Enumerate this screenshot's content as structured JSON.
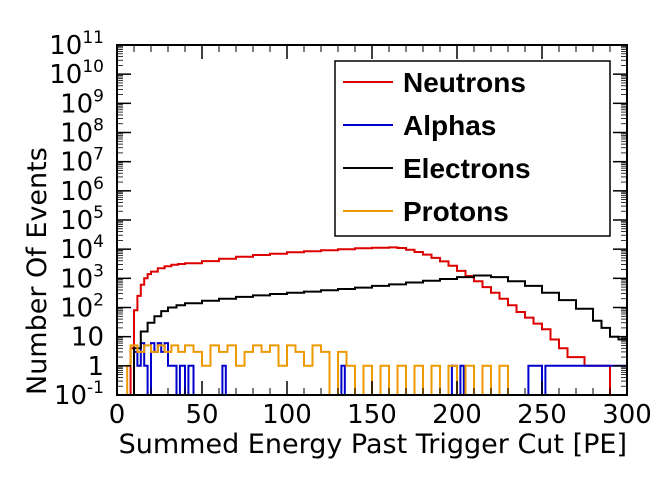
{
  "chart_data": {
    "type": "line",
    "xlabel": "Summed Energy Past Trigger Cut [PE]",
    "ylabel": "Number Of Events",
    "xlim": [
      0,
      300
    ],
    "ylim": [
      0.1,
      100000000000
    ],
    "yscale": "log",
    "x_ticks": [
      {
        "value": 0,
        "label": "0"
      },
      {
        "value": 50,
        "label": "50"
      },
      {
        "value": 100,
        "label": "100"
      },
      {
        "value": 150,
        "label": "150"
      },
      {
        "value": 200,
        "label": "200"
      },
      {
        "value": 250,
        "label": "250"
      },
      {
        "value": 300,
        "label": "300"
      }
    ],
    "y_ticks": [
      {
        "value": 0.1,
        "base": "10",
        "exp": "-1"
      },
      {
        "value": 1,
        "base": "1",
        "exp": ""
      },
      {
        "value": 10,
        "base": "10",
        "exp": ""
      },
      {
        "value": 100,
        "base": "10",
        "exp": "2"
      },
      {
        "value": 1000,
        "base": "10",
        "exp": "3"
      },
      {
        "value": 10000,
        "base": "10",
        "exp": "4"
      },
      {
        "value": 100000,
        "base": "10",
        "exp": "5"
      },
      {
        "value": 1000000,
        "base": "10",
        "exp": "6"
      },
      {
        "value": 10000000,
        "base": "10",
        "exp": "7"
      },
      {
        "value": 100000000,
        "base": "10",
        "exp": "8"
      },
      {
        "value": 1000000000,
        "base": "10",
        "exp": "9"
      },
      {
        "value": 10000000000,
        "base": "10",
        "exp": "10"
      },
      {
        "value": 100000000000,
        "base": "10",
        "exp": "11"
      }
    ],
    "grid": false,
    "legend_position": "top-right",
    "series": [
      {
        "name": "Neutrons",
        "color": "#dd0000",
        "x": [
          0,
          8,
          10,
          12,
          14,
          16,
          18,
          20,
          24,
          28,
          32,
          36,
          40,
          50,
          60,
          70,
          80,
          90,
          100,
          110,
          120,
          130,
          140,
          150,
          160,
          165,
          170,
          175,
          180,
          185,
          190,
          195,
          200,
          205,
          210,
          215,
          220,
          225,
          230,
          235,
          240,
          245,
          250,
          255,
          260,
          265,
          270,
          275,
          280,
          285,
          290,
          295,
          300
        ],
        "y": [
          0.1,
          4,
          80,
          250,
          600,
          1000,
          1400,
          1700,
          2200,
          2600,
          2900,
          3100,
          3300,
          3900,
          4700,
          5500,
          6300,
          7000,
          7800,
          8500,
          9200,
          10000,
          10800,
          11200,
          11500,
          11000,
          9500,
          8000,
          6500,
          5000,
          3800,
          2700,
          1800,
          1200,
          800,
          500,
          320,
          200,
          120,
          70,
          45,
          28,
          18,
          8,
          4,
          2,
          2,
          1,
          1,
          1,
          0.1,
          0.1,
          0.1
        ]
      },
      {
        "name": "Alphas",
        "color": "#0000cc",
        "x": [
          0,
          10,
          12,
          14,
          16,
          18,
          20,
          22,
          24,
          26,
          28,
          30,
          35,
          37,
          40,
          42,
          45,
          60,
          62,
          64,
          130,
          132,
          134,
          195,
          197,
          200,
          202,
          204,
          240,
          242,
          250,
          252,
          300
        ],
        "y": [
          0.1,
          3,
          1,
          6,
          1,
          0.1,
          6,
          3,
          6,
          3,
          6,
          1,
          0.1,
          1,
          0.1,
          1,
          0.1,
          0.1,
          1,
          0.1,
          0.1,
          1,
          0.1,
          0.1,
          1,
          0.1,
          1,
          0.1,
          0.1,
          1,
          0.1,
          1,
          0.1
        ]
      },
      {
        "name": "Electrons",
        "color": "#000000",
        "x": [
          0,
          10,
          14,
          18,
          22,
          26,
          30,
          35,
          40,
          50,
          60,
          70,
          80,
          90,
          100,
          110,
          120,
          130,
          140,
          150,
          160,
          170,
          180,
          190,
          200,
          210,
          220,
          230,
          240,
          250,
          260,
          270,
          280,
          285,
          290,
          295,
          300
        ],
        "y": [
          0.1,
          4,
          15,
          30,
          50,
          75,
          100,
          120,
          140,
          170,
          200,
          230,
          260,
          290,
          320,
          350,
          390,
          430,
          480,
          550,
          620,
          720,
          820,
          950,
          1100,
          1250,
          1100,
          800,
          550,
          320,
          180,
          90,
          35,
          20,
          10,
          8,
          8
        ]
      },
      {
        "name": "Protons",
        "color": "#ee9900",
        "x": [
          0,
          6,
          8,
          12,
          16,
          20,
          24,
          28,
          32,
          36,
          40,
          45,
          50,
          55,
          60,
          65,
          70,
          75,
          80,
          85,
          90,
          95,
          100,
          105,
          110,
          115,
          120,
          125,
          130,
          135,
          140,
          145,
          150,
          155,
          160,
          165,
          170,
          175,
          180,
          185,
          190,
          195,
          200,
          205,
          210,
          215,
          220,
          225,
          230,
          250,
          300
        ],
        "y": [
          0.1,
          1,
          5,
          3,
          5,
          3,
          5,
          3,
          5,
          3,
          5,
          3,
          1,
          5,
          3,
          5,
          1,
          3,
          5,
          3,
          5,
          1,
          5,
          3,
          1,
          5,
          3,
          0.1,
          3,
          1,
          0.1,
          1,
          0.1,
          1,
          0.1,
          1,
          0.1,
          1,
          0.1,
          1,
          0.1,
          1,
          0.1,
          1,
          0.1,
          1,
          0.1,
          1,
          0.1,
          0.1,
          0.1
        ]
      }
    ]
  }
}
